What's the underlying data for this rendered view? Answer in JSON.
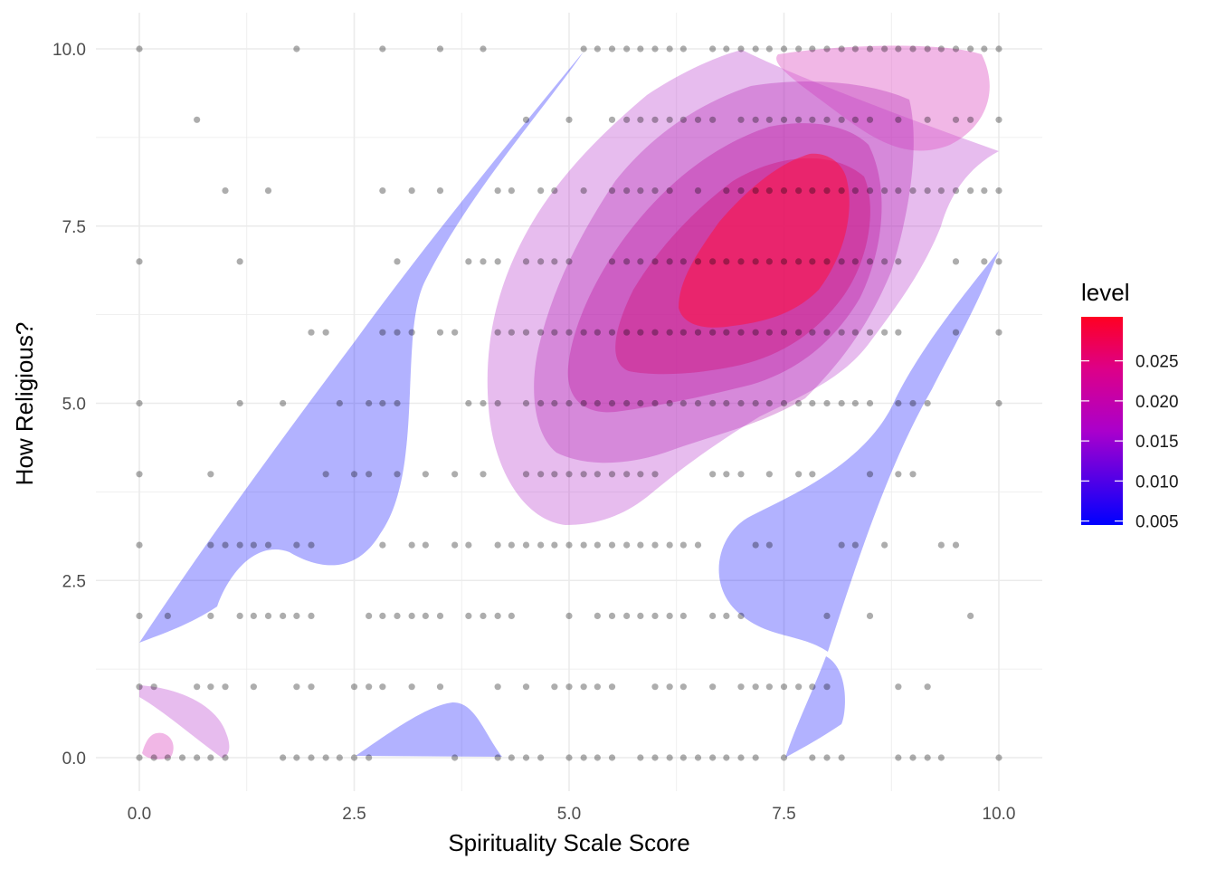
{
  "chart_data": {
    "type": "scatter",
    "subtype": "scatter with 2D density contour fill",
    "xlabel": "Spirituality Scale Score",
    "ylabel": "How Religious?",
    "xlim": [
      0,
      10
    ],
    "ylim": [
      0,
      10
    ],
    "x_ticks": [
      "0.0",
      "2.5",
      "5.0",
      "7.5",
      "10.0"
    ],
    "y_ticks": [
      "0.0",
      "2.5",
      "5.0",
      "7.5",
      "10.0"
    ],
    "grid": true,
    "point_color": "#000000",
    "legend": {
      "title": "level",
      "position": "right",
      "labels": [
        "0.025",
        "0.020",
        "0.015",
        "0.010",
        "0.005"
      ],
      "values": [
        0.025,
        0.02,
        0.015,
        0.01,
        0.005
      ],
      "range": [
        0.0045,
        0.0305
      ],
      "color_low": "#0000ff",
      "color_mid": "#aa00cc",
      "color_high": "#ff0022"
    },
    "density_levels": [
      {
        "level": 0.005,
        "color": "#0000ff"
      },
      {
        "level": 0.01,
        "color": "#a020c8"
      },
      {
        "level": 0.015,
        "color": "#c01aa0"
      },
      {
        "level": 0.02,
        "color": "#d01880"
      },
      {
        "level": 0.025,
        "color": "#e01560"
      },
      {
        "level": 0.03,
        "color": "#ff1040"
      }
    ],
    "points": [
      [
        0,
        10
      ],
      [
        1.83,
        10
      ],
      [
        2.83,
        10
      ],
      [
        3.5,
        10
      ],
      [
        4,
        10
      ],
      [
        5.17,
        10
      ],
      [
        5.33,
        10
      ],
      [
        5.5,
        10
      ],
      [
        5.67,
        10
      ],
      [
        5.83,
        10
      ],
      [
        6,
        10
      ],
      [
        6.17,
        10
      ],
      [
        6.33,
        10
      ],
      [
        6.67,
        10
      ],
      [
        6.83,
        10
      ],
      [
        7,
        10
      ],
      [
        7.17,
        10
      ],
      [
        7.33,
        10
      ],
      [
        7.5,
        10
      ],
      [
        7.67,
        10
      ],
      [
        7.83,
        10
      ],
      [
        8,
        10
      ],
      [
        8.17,
        10
      ],
      [
        8.33,
        10
      ],
      [
        8.5,
        10
      ],
      [
        8.67,
        10
      ],
      [
        8.83,
        10
      ],
      [
        9,
        10
      ],
      [
        9.17,
        10
      ],
      [
        9.33,
        10
      ],
      [
        9.5,
        10
      ],
      [
        9.67,
        10
      ],
      [
        9.83,
        10
      ],
      [
        10,
        10
      ],
      [
        0.67,
        9
      ],
      [
        4.5,
        9
      ],
      [
        5,
        9
      ],
      [
        5.5,
        9
      ],
      [
        5.67,
        9
      ],
      [
        5.83,
        9
      ],
      [
        6,
        9
      ],
      [
        6.17,
        9
      ],
      [
        6.33,
        9
      ],
      [
        6.5,
        9
      ],
      [
        6.67,
        9
      ],
      [
        7,
        9
      ],
      [
        7.17,
        9
      ],
      [
        7.33,
        9
      ],
      [
        7.5,
        9
      ],
      [
        7.67,
        9
      ],
      [
        7.83,
        9
      ],
      [
        8,
        9
      ],
      [
        8.17,
        9
      ],
      [
        8.33,
        9
      ],
      [
        8.5,
        9
      ],
      [
        8.83,
        9
      ],
      [
        9.17,
        9
      ],
      [
        9.5,
        9
      ],
      [
        9.67,
        9
      ],
      [
        10,
        9
      ],
      [
        1,
        8
      ],
      [
        1.5,
        8
      ],
      [
        2.83,
        8
      ],
      [
        3.17,
        8
      ],
      [
        3.5,
        8
      ],
      [
        4.17,
        8
      ],
      [
        4.33,
        8
      ],
      [
        4.67,
        8
      ],
      [
        4.83,
        8
      ],
      [
        5.17,
        8
      ],
      [
        5.5,
        8
      ],
      [
        5.67,
        8
      ],
      [
        5.83,
        8
      ],
      [
        6,
        8
      ],
      [
        6.17,
        8
      ],
      [
        6.5,
        8
      ],
      [
        6.83,
        8
      ],
      [
        7,
        8
      ],
      [
        7.17,
        8
      ],
      [
        7.33,
        8
      ],
      [
        7.5,
        8
      ],
      [
        7.67,
        8
      ],
      [
        7.83,
        8
      ],
      [
        8,
        8
      ],
      [
        8.17,
        8
      ],
      [
        8.33,
        8
      ],
      [
        8.5,
        8
      ],
      [
        8.67,
        8
      ],
      [
        8.83,
        8
      ],
      [
        9,
        8
      ],
      [
        9.17,
        8
      ],
      [
        9.33,
        8
      ],
      [
        9.5,
        8
      ],
      [
        9.67,
        8
      ],
      [
        9.83,
        8
      ],
      [
        10,
        8
      ],
      [
        0,
        7
      ],
      [
        1.17,
        7
      ],
      [
        3,
        7
      ],
      [
        3.83,
        7
      ],
      [
        4,
        7
      ],
      [
        4.17,
        7
      ],
      [
        4.5,
        7
      ],
      [
        4.67,
        7
      ],
      [
        4.83,
        7
      ],
      [
        5,
        7
      ],
      [
        5.5,
        7
      ],
      [
        5.67,
        7
      ],
      [
        5.83,
        7
      ],
      [
        6,
        7
      ],
      [
        6.17,
        7
      ],
      [
        6.33,
        7
      ],
      [
        6.5,
        7
      ],
      [
        6.67,
        7
      ],
      [
        6.83,
        7
      ],
      [
        7,
        7
      ],
      [
        7.17,
        7
      ],
      [
        7.33,
        7
      ],
      [
        7.5,
        7
      ],
      [
        7.67,
        7
      ],
      [
        7.83,
        7
      ],
      [
        8,
        7
      ],
      [
        8.17,
        7
      ],
      [
        8.33,
        7
      ],
      [
        8.5,
        7
      ],
      [
        8.67,
        7
      ],
      [
        8.83,
        7
      ],
      [
        9.5,
        7
      ],
      [
        9.83,
        7
      ],
      [
        10,
        7
      ],
      [
        2,
        6
      ],
      [
        2.17,
        6
      ],
      [
        2.83,
        6
      ],
      [
        3,
        6
      ],
      [
        3.17,
        6
      ],
      [
        3.5,
        6
      ],
      [
        3.67,
        6
      ],
      [
        4.17,
        6
      ],
      [
        4.33,
        6
      ],
      [
        4.5,
        6
      ],
      [
        4.67,
        6
      ],
      [
        4.83,
        6
      ],
      [
        5,
        6
      ],
      [
        5.17,
        6
      ],
      [
        5.33,
        6
      ],
      [
        5.5,
        6
      ],
      [
        5.67,
        6
      ],
      [
        5.83,
        6
      ],
      [
        6,
        6
      ],
      [
        6.17,
        6
      ],
      [
        6.33,
        6
      ],
      [
        6.5,
        6
      ],
      [
        6.67,
        6
      ],
      [
        6.83,
        6
      ],
      [
        7,
        6
      ],
      [
        7.17,
        6
      ],
      [
        7.33,
        6
      ],
      [
        7.5,
        6
      ],
      [
        7.67,
        6
      ],
      [
        7.83,
        6
      ],
      [
        8,
        6
      ],
      [
        8.17,
        6
      ],
      [
        8.33,
        6
      ],
      [
        8.5,
        6
      ],
      [
        8.67,
        6
      ],
      [
        8.83,
        6
      ],
      [
        9.5,
        6
      ],
      [
        10,
        6
      ],
      [
        0,
        5
      ],
      [
        1.17,
        5
      ],
      [
        1.67,
        5
      ],
      [
        2.33,
        5
      ],
      [
        2.67,
        5
      ],
      [
        2.83,
        5
      ],
      [
        3,
        5
      ],
      [
        3.83,
        5
      ],
      [
        4,
        5
      ],
      [
        4.17,
        5
      ],
      [
        4.5,
        5
      ],
      [
        4.67,
        5
      ],
      [
        4.83,
        5
      ],
      [
        5,
        5
      ],
      [
        5.17,
        5
      ],
      [
        5.33,
        5
      ],
      [
        5.5,
        5
      ],
      [
        5.67,
        5
      ],
      [
        5.83,
        5
      ],
      [
        6,
        5
      ],
      [
        6.17,
        5
      ],
      [
        6.33,
        5
      ],
      [
        6.5,
        5
      ],
      [
        6.67,
        5
      ],
      [
        6.83,
        5
      ],
      [
        7,
        5
      ],
      [
        7.17,
        5
      ],
      [
        7.33,
        5
      ],
      [
        7.5,
        5
      ],
      [
        7.67,
        5
      ],
      [
        7.83,
        5
      ],
      [
        8,
        5
      ],
      [
        8.17,
        5
      ],
      [
        8.33,
        5
      ],
      [
        8.5,
        5
      ],
      [
        8.83,
        5
      ],
      [
        9,
        5
      ],
      [
        9.17,
        5
      ],
      [
        10,
        5
      ],
      [
        0,
        4
      ],
      [
        0.83,
        4
      ],
      [
        2.17,
        4
      ],
      [
        2.5,
        4
      ],
      [
        2.67,
        4
      ],
      [
        3,
        4
      ],
      [
        3.33,
        4
      ],
      [
        3.67,
        4
      ],
      [
        4,
        4
      ],
      [
        4.5,
        4
      ],
      [
        4.67,
        4
      ],
      [
        4.83,
        4
      ],
      [
        5,
        4
      ],
      [
        5.17,
        4
      ],
      [
        5.33,
        4
      ],
      [
        5.5,
        4
      ],
      [
        5.67,
        4
      ],
      [
        5.83,
        4
      ],
      [
        6,
        4
      ],
      [
        6.67,
        4
      ],
      [
        6.83,
        4
      ],
      [
        7,
        4
      ],
      [
        7.33,
        4
      ],
      [
        7.67,
        4
      ],
      [
        7.83,
        4
      ],
      [
        8.5,
        4
      ],
      [
        8.83,
        4
      ],
      [
        9,
        4
      ],
      [
        0,
        3
      ],
      [
        0.83,
        3
      ],
      [
        1,
        3
      ],
      [
        1.17,
        3
      ],
      [
        1.33,
        3
      ],
      [
        1.5,
        3
      ],
      [
        1.83,
        3
      ],
      [
        2,
        3
      ],
      [
        2.83,
        3
      ],
      [
        3.17,
        3
      ],
      [
        3.33,
        3
      ],
      [
        3.67,
        3
      ],
      [
        3.83,
        3
      ],
      [
        4.17,
        3
      ],
      [
        4.33,
        3
      ],
      [
        4.5,
        3
      ],
      [
        4.67,
        3
      ],
      [
        4.83,
        3
      ],
      [
        5,
        3
      ],
      [
        5.17,
        3
      ],
      [
        5.33,
        3
      ],
      [
        5.5,
        3
      ],
      [
        5.67,
        3
      ],
      [
        5.83,
        3
      ],
      [
        6,
        3
      ],
      [
        6.17,
        3
      ],
      [
        6.33,
        3
      ],
      [
        6.5,
        3
      ],
      [
        7.17,
        3
      ],
      [
        7.33,
        3
      ],
      [
        8.17,
        3
      ],
      [
        8.33,
        3
      ],
      [
        8.67,
        3
      ],
      [
        9.33,
        3
      ],
      [
        9.5,
        3
      ],
      [
        0,
        2
      ],
      [
        0.33,
        2
      ],
      [
        0.83,
        2
      ],
      [
        1.17,
        2
      ],
      [
        1.33,
        2
      ],
      [
        1.5,
        2
      ],
      [
        1.67,
        2
      ],
      [
        1.83,
        2
      ],
      [
        2,
        2
      ],
      [
        2.67,
        2
      ],
      [
        2.83,
        2
      ],
      [
        3,
        2
      ],
      [
        3.17,
        2
      ],
      [
        3.33,
        2
      ],
      [
        3.5,
        2
      ],
      [
        3.83,
        2
      ],
      [
        4,
        2
      ],
      [
        4.17,
        2
      ],
      [
        4.33,
        2
      ],
      [
        5,
        2
      ],
      [
        5.33,
        2
      ],
      [
        5.5,
        2
      ],
      [
        5.67,
        2
      ],
      [
        5.83,
        2
      ],
      [
        6,
        2
      ],
      [
        6.17,
        2
      ],
      [
        6.33,
        2
      ],
      [
        6.67,
        2
      ],
      [
        6.83,
        2
      ],
      [
        7,
        2
      ],
      [
        8,
        2
      ],
      [
        8.5,
        2
      ],
      [
        9.67,
        2
      ],
      [
        0,
        1
      ],
      [
        0.17,
        1
      ],
      [
        0.67,
        1
      ],
      [
        0.83,
        1
      ],
      [
        1,
        1
      ],
      [
        1.33,
        1
      ],
      [
        1.83,
        1
      ],
      [
        2,
        1
      ],
      [
        2.5,
        1
      ],
      [
        2.67,
        1
      ],
      [
        2.83,
        1
      ],
      [
        3.17,
        1
      ],
      [
        3.5,
        1
      ],
      [
        4.17,
        1
      ],
      [
        4.5,
        1
      ],
      [
        4.83,
        1
      ],
      [
        5,
        1
      ],
      [
        5.17,
        1
      ],
      [
        5.33,
        1
      ],
      [
        5.5,
        1
      ],
      [
        6,
        1
      ],
      [
        6.17,
        1
      ],
      [
        6.33,
        1
      ],
      [
        6.67,
        1
      ],
      [
        7,
        1
      ],
      [
        7.17,
        1
      ],
      [
        7.33,
        1
      ],
      [
        7.5,
        1
      ],
      [
        7.67,
        1
      ],
      [
        7.83,
        1
      ],
      [
        8,
        1
      ],
      [
        8.83,
        1
      ],
      [
        9.17,
        1
      ],
      [
        0,
        0
      ],
      [
        0.17,
        0
      ],
      [
        0.33,
        0
      ],
      [
        0.5,
        0
      ],
      [
        0.67,
        0
      ],
      [
        0.83,
        0
      ],
      [
        1,
        0
      ],
      [
        1.67,
        0
      ],
      [
        1.83,
        0
      ],
      [
        2,
        0
      ],
      [
        2.17,
        0
      ],
      [
        2.33,
        0
      ],
      [
        2.5,
        0
      ],
      [
        2.67,
        0
      ],
      [
        3.67,
        0
      ],
      [
        4.17,
        0
      ],
      [
        4.33,
        0
      ],
      [
        4.5,
        0
      ],
      [
        4.67,
        0
      ],
      [
        5,
        0
      ],
      [
        5.17,
        0
      ],
      [
        5.33,
        0
      ],
      [
        5.5,
        0
      ],
      [
        5.83,
        0
      ],
      [
        6,
        0
      ],
      [
        6.17,
        0
      ],
      [
        6.33,
        0
      ],
      [
        6.5,
        0
      ],
      [
        6.67,
        0
      ],
      [
        6.83,
        0
      ],
      [
        7,
        0
      ],
      [
        7.17,
        0
      ],
      [
        7.5,
        0
      ],
      [
        7.83,
        0
      ],
      [
        8,
        0
      ],
      [
        8.17,
        0
      ],
      [
        8.83,
        0
      ],
      [
        9,
        0
      ],
      [
        9.17,
        0
      ],
      [
        9.33,
        0
      ],
      [
        10,
        0
      ]
    ]
  }
}
